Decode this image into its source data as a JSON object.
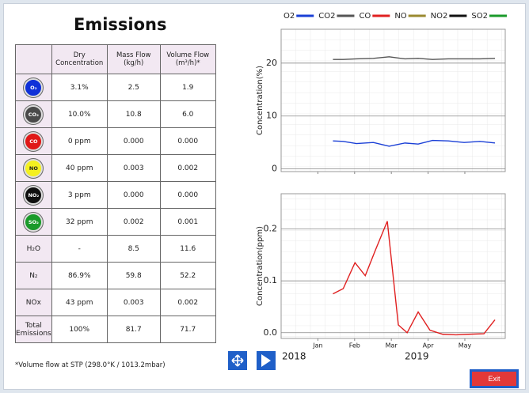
{
  "title": "Emissions",
  "table": {
    "headers": [
      "Dry Concentration",
      "Mass Flow (kg/h)",
      "Volume Flow (m³/h)*"
    ],
    "rows": [
      {
        "label": "O₂",
        "color": "#1030d8",
        "cells": [
          "3.1%",
          "2.5",
          "1.9"
        ]
      },
      {
        "label": "CO₂",
        "color": "#4a4a4a",
        "cells": [
          "10.0%",
          "10.8",
          "6.0"
        ]
      },
      {
        "label": "CO",
        "color": "#e01818",
        "cells": [
          "0 ppm",
          "0.000",
          "0.000"
        ]
      },
      {
        "label": "NO",
        "color": "#f4f020",
        "cells": [
          "40 ppm",
          "0.003",
          "0.002"
        ]
      },
      {
        "label": "NO₂",
        "color": "#101010",
        "cells": [
          "3 ppm",
          "0.000",
          "0.000"
        ]
      },
      {
        "label": "SO₂",
        "color": "#1a9a2a",
        "cells": [
          "32 ppm",
          "0.002",
          "0.001"
        ]
      },
      {
        "label": "H₂O",
        "cells": [
          "-",
          "8.5",
          "11.6"
        ]
      },
      {
        "label": "N₂",
        "cells": [
          "86.9%",
          "59.8",
          "52.2"
        ]
      },
      {
        "label": "NOx",
        "cells": [
          "43 ppm",
          "0.003",
          "0.002"
        ]
      },
      {
        "label": "Total Emissions",
        "cells": [
          "100%",
          "81.7",
          "71.7"
        ]
      }
    ]
  },
  "footnote": "*Volume flow at STP (298.0°K / 1013.2mbar)",
  "years": [
    "2018",
    "2019"
  ],
  "exit_button": "Exit",
  "legend": [
    {
      "name": "O2",
      "color": "#1a3fd6"
    },
    {
      "name": "CO2",
      "color": "#555555"
    },
    {
      "name": "CO",
      "color": "#e02020"
    },
    {
      "name": "NO",
      "color": "#9a8a30"
    },
    {
      "name": "NO2",
      "color": "#111111"
    },
    {
      "name": "SO2",
      "color": "#1a9a2a"
    }
  ],
  "charts": [
    {
      "type": "line",
      "y_label": "Concentration(%)",
      "xlim": [
        0,
        6.1
      ],
      "xticks": [
        {
          "value": 1,
          "label": "Jan"
        },
        {
          "value": 2,
          "label": "Feb"
        },
        {
          "value": 3,
          "label": "Mar"
        },
        {
          "value": 4,
          "label": "Apr"
        },
        {
          "value": 5,
          "label": "May"
        }
      ],
      "ylim": [
        -0.5,
        26.4
      ],
      "yticks": [
        0,
        10,
        20
      ],
      "grid": true,
      "series": [
        {
          "name": "O2",
          "color": "#1a3fd6",
          "x": [
            1.41,
            1.69,
            2.05,
            2.51,
            2.94,
            3.37,
            3.73,
            4.12,
            4.55,
            4.98,
            5.41,
            5.82
          ],
          "values": [
            5.3,
            5.2,
            4.8,
            5.0,
            4.3,
            4.9,
            4.7,
            5.4,
            5.3,
            5.0,
            5.2,
            4.9
          ]
        },
        {
          "name": "CO2",
          "color": "#555555",
          "x": [
            1.41,
            1.69,
            2.05,
            2.51,
            2.94,
            3.37,
            3.73,
            4.12,
            4.55,
            4.98,
            5.41,
            5.82
          ],
          "values": [
            20.7,
            20.7,
            20.8,
            20.9,
            21.2,
            20.8,
            20.9,
            20.7,
            20.8,
            20.8,
            20.8,
            20.9
          ]
        }
      ]
    },
    {
      "type": "line",
      "y_label": "Concentration(ppm)",
      "xlim": [
        0,
        6.1
      ],
      "xticks": [
        {
          "value": 1,
          "label": "Jan"
        },
        {
          "value": 2,
          "label": "Feb"
        },
        {
          "value": 3,
          "label": "Mar"
        },
        {
          "value": 4,
          "label": "Apr"
        },
        {
          "value": 5,
          "label": "May"
        }
      ],
      "ylim": [
        -0.011,
        0.268
      ],
      "yticks": [
        {
          "value": 0,
          "label": "0.0"
        },
        0.1,
        0.2
      ],
      "grid": true,
      "series": [
        {
          "name": "CO",
          "color": "#e02020",
          "x": [
            1.41,
            1.69,
            2.01,
            2.29,
            2.57,
            2.89,
            3.19,
            3.43,
            3.73,
            4.05,
            4.4,
            4.76,
            5.09,
            5.52,
            5.82
          ],
          "values": [
            0.075,
            0.085,
            0.135,
            0.11,
            0.16,
            0.215,
            0.015,
            0.0,
            0.04,
            0.005,
            -0.003,
            -0.004,
            -0.003,
            -0.002,
            0.025
          ]
        }
      ]
    }
  ]
}
